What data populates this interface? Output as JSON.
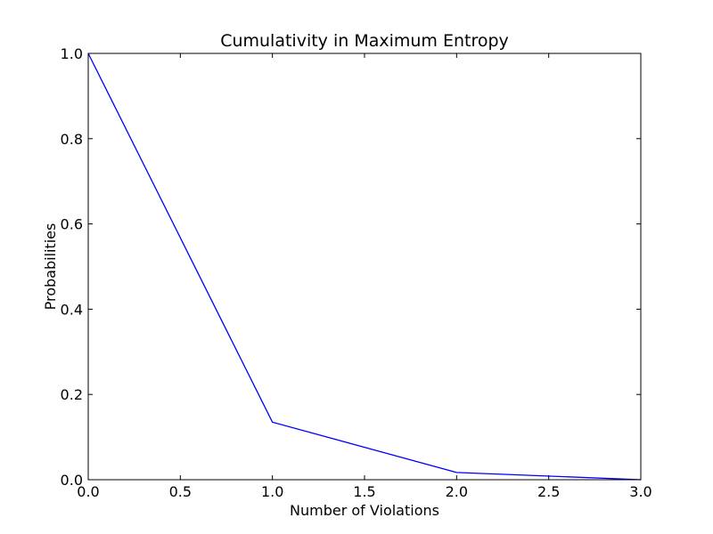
{
  "chart_data": {
    "type": "line",
    "title": "Cumulativity in Maximum Entropy",
    "xlabel": "Number of Violations",
    "ylabel": "Probabilities",
    "xlim": [
      0.0,
      3.0
    ],
    "ylim": [
      0.0,
      1.0
    ],
    "x_ticks": [
      "0.0",
      "0.5",
      "1.0",
      "1.5",
      "2.0",
      "2.5",
      "3.0"
    ],
    "y_ticks": [
      "0.0",
      "0.2",
      "0.4",
      "0.6",
      "0.8",
      "1.0"
    ],
    "x_tick_values": [
      0.0,
      0.5,
      1.0,
      1.5,
      2.0,
      2.5,
      3.0
    ],
    "y_tick_values": [
      0.0,
      0.2,
      0.4,
      0.6,
      0.8,
      1.0
    ],
    "grid": false,
    "legend": "none",
    "series": [
      {
        "color": "#0000ff",
        "x": [
          0,
          1,
          2,
          3
        ],
        "y": [
          1.0,
          0.135,
          0.017,
          0.0
        ]
      }
    ]
  }
}
